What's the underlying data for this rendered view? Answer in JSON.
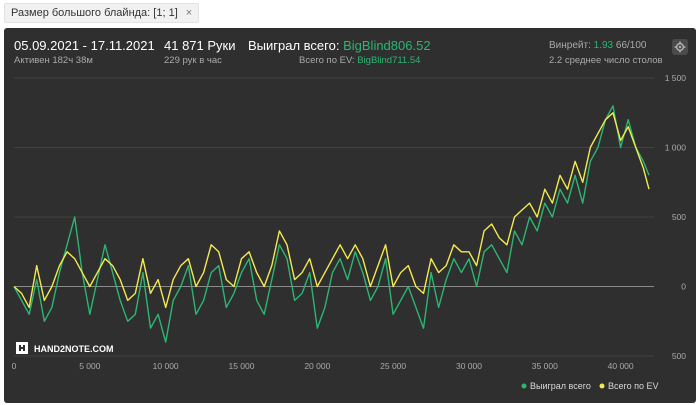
{
  "filter": {
    "label": "Размер большого блайнда: [1; 1]",
    "close_glyph": "×"
  },
  "stats": {
    "date_range": "05.09.2021 - 17.11.2021",
    "active": "Активен 182ч 38м",
    "hands": "41 871 Руки",
    "hands_per_hour": "229 рук в час",
    "won_label": "Выиграл всего:",
    "won_value": "BigBlind806.52",
    "ev_label": "Всего по EV:",
    "ev_value": "BigBlind711.54",
    "winrate_label": "Винрейт:",
    "winrate_value": "1.93",
    "winrate_suffix": "66/100",
    "avg_tables": "2.2 среднее число столов"
  },
  "logo_text": "HAND2NOTE.COM",
  "colors": {
    "won": "#2bb673",
    "ev": "#f2ea4e",
    "panel": "#2f2f2f",
    "grid": "#555555",
    "zero": "#8a8a8a"
  },
  "chart_data": {
    "type": "line",
    "xlim": [
      0,
      41871
    ],
    "ylim": [
      -500,
      1500
    ],
    "x_ticks": [
      0,
      5000,
      10000,
      15000,
      20000,
      25000,
      30000,
      35000,
      40000
    ],
    "x_tick_labels": [
      "0",
      "5 000",
      "10 000",
      "15 000",
      "20 000",
      "25 000",
      "30 000",
      "35 000",
      "40 000"
    ],
    "y_ticks": [
      -500,
      0,
      500,
      1000,
      1500
    ],
    "y_tick_labels": [
      "500",
      "0",
      "500",
      "1 000",
      "1 500"
    ],
    "grid": true,
    "legend_position": "bottom-right",
    "series": [
      {
        "name": "Выиграл всего",
        "color": "#2bb673",
        "x": [
          0,
          500,
          1000,
          1500,
          2000,
          2500,
          3000,
          3500,
          4000,
          4500,
          5000,
          5500,
          6000,
          6500,
          7000,
          7500,
          8000,
          8500,
          9000,
          9500,
          10000,
          10500,
          11000,
          11500,
          12000,
          12500,
          13000,
          13500,
          14000,
          14500,
          15000,
          15500,
          16000,
          16500,
          17000,
          17500,
          18000,
          18500,
          19000,
          19500,
          20000,
          20500,
          21000,
          21500,
          22000,
          22500,
          23000,
          23500,
          24000,
          24500,
          25000,
          25500,
          26000,
          26500,
          27000,
          27500,
          28000,
          28500,
          29000,
          29500,
          30000,
          30500,
          31000,
          31500,
          32000,
          32500,
          33000,
          33500,
          34000,
          34500,
          35000,
          35500,
          36000,
          36500,
          37000,
          37500,
          38000,
          38500,
          39000,
          39500,
          40000,
          40500,
          41000,
          41500,
          41871
        ],
        "y": [
          0,
          -100,
          -200,
          50,
          -250,
          -150,
          100,
          300,
          500,
          100,
          -200,
          50,
          300,
          100,
          -100,
          -250,
          -200,
          100,
          -300,
          -200,
          -400,
          -100,
          0,
          150,
          -200,
          -100,
          100,
          150,
          -150,
          -50,
          100,
          200,
          -100,
          -200,
          50,
          300,
          200,
          -100,
          -50,
          100,
          -300,
          -150,
          100,
          200,
          50,
          250,
          100,
          -100,
          0,
          200,
          -200,
          -100,
          0,
          -150,
          -300,
          100,
          -150,
          50,
          200,
          100,
          200,
          0,
          250,
          300,
          200,
          100,
          400,
          300,
          500,
          400,
          600,
          500,
          700,
          600,
          800,
          600,
          900,
          1000,
          1200,
          1300,
          1000,
          1200,
          1000,
          900,
          800
        ]
      },
      {
        "name": "Всего по EV",
        "color": "#f2ea4e",
        "x": [
          0,
          500,
          1000,
          1500,
          2000,
          2500,
          3000,
          3500,
          4000,
          4500,
          5000,
          5500,
          6000,
          6500,
          7000,
          7500,
          8000,
          8500,
          9000,
          9500,
          10000,
          10500,
          11000,
          11500,
          12000,
          12500,
          13000,
          13500,
          14000,
          14500,
          15000,
          15500,
          16000,
          16500,
          17000,
          17500,
          18000,
          18500,
          19000,
          19500,
          20000,
          20500,
          21000,
          21500,
          22000,
          22500,
          23000,
          23500,
          24000,
          24500,
          25000,
          25500,
          26000,
          26500,
          27000,
          27500,
          28000,
          28500,
          29000,
          29500,
          30000,
          30500,
          31000,
          31500,
          32000,
          32500,
          33000,
          33500,
          34000,
          34500,
          35000,
          35500,
          36000,
          36500,
          37000,
          37500,
          38000,
          38500,
          39000,
          39500,
          40000,
          40500,
          41000,
          41500,
          41871
        ],
        "y": [
          0,
          -50,
          -150,
          150,
          -100,
          0,
          150,
          250,
          200,
          100,
          0,
          100,
          200,
          150,
          50,
          -100,
          -50,
          200,
          -50,
          50,
          -150,
          50,
          150,
          200,
          0,
          100,
          300,
          250,
          50,
          0,
          200,
          250,
          100,
          0,
          150,
          400,
          300,
          50,
          100,
          200,
          0,
          100,
          200,
          300,
          200,
          300,
          200,
          0,
          150,
          300,
          0,
          100,
          150,
          0,
          -50,
          200,
          100,
          150,
          300,
          250,
          250,
          150,
          400,
          450,
          350,
          300,
          500,
          550,
          600,
          500,
          700,
          600,
          800,
          700,
          900,
          750,
          1000,
          1100,
          1200,
          1250,
          1050,
          1150,
          1000,
          850,
          700
        ]
      }
    ]
  }
}
